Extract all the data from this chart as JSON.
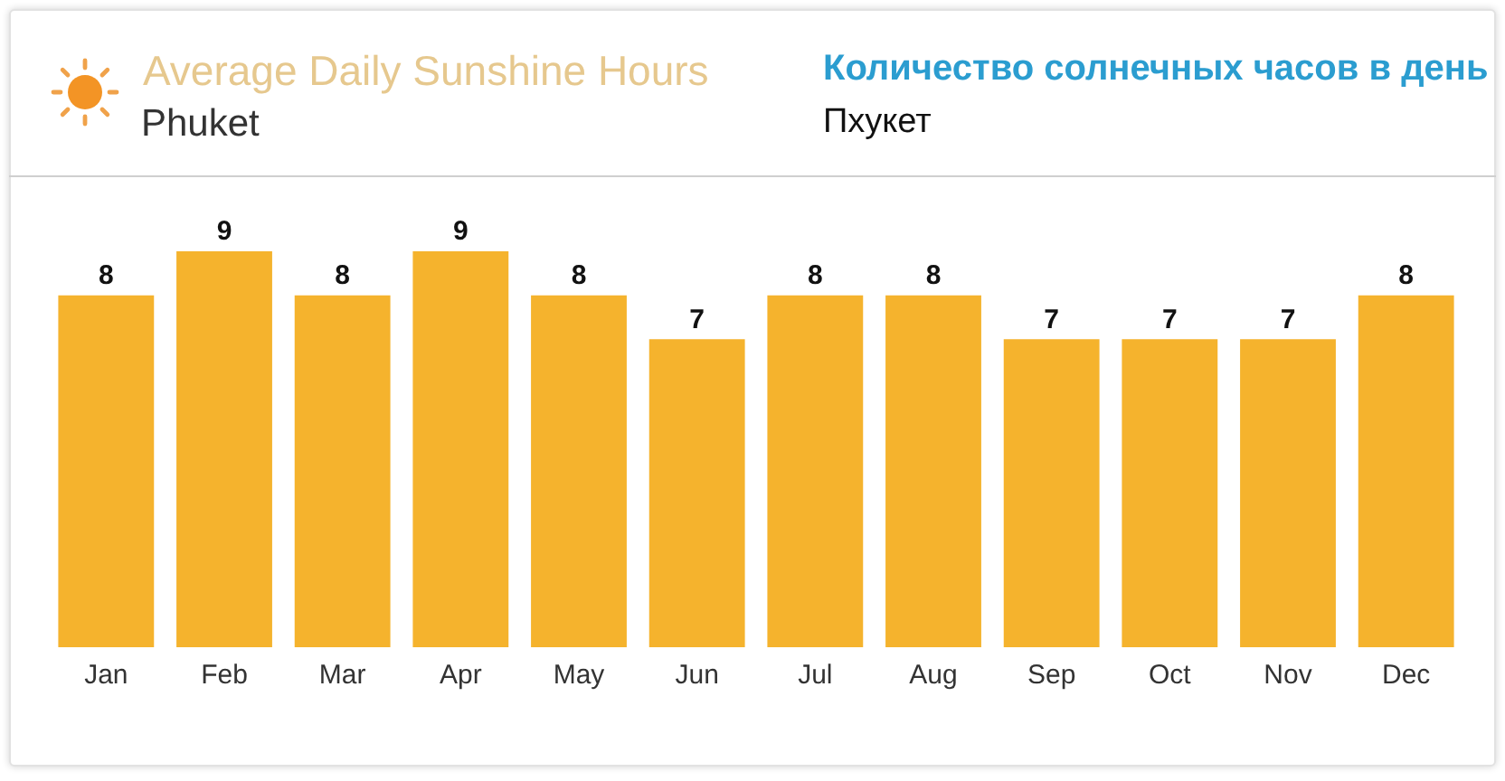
{
  "chart_data": {
    "type": "bar",
    "title": "Average Daily Sunshine Hours",
    "subtitle": "Phuket",
    "annotations": [
      "Количество солнечных часов в день",
      "Пхукет"
    ],
    "categories": [
      "Jan",
      "Feb",
      "Mar",
      "Apr",
      "May",
      "Jun",
      "Jul",
      "Aug",
      "Sep",
      "Oct",
      "Nov",
      "Dec"
    ],
    "values": [
      8,
      9,
      8,
      9,
      8,
      7,
      8,
      8,
      7,
      7,
      7,
      8
    ],
    "color": "#f5b32d",
    "data_labels": true,
    "tick_labels": "x"
  }
}
